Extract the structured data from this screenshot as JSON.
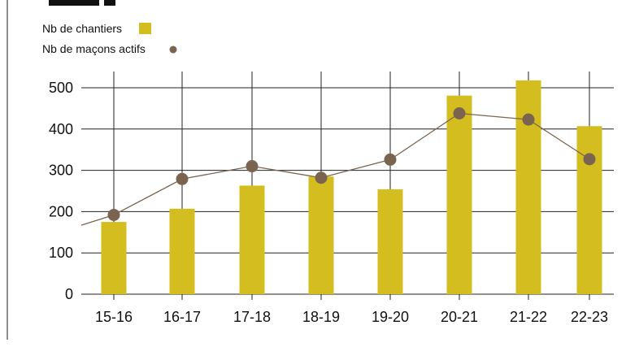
{
  "chart_data": {
    "type": "bar",
    "categories": [
      "15-16",
      "16-17",
      "17-18",
      "18-19",
      "19-20",
      "20-21",
      "21-22",
      "22-23"
    ],
    "series": [
      {
        "name": "Nb de chantiers",
        "type": "bar",
        "color": "#d4bd1e",
        "values": [
          175,
          207,
          263,
          285,
          254,
          481,
          518,
          407
        ]
      },
      {
        "name": "Nb de maçons actifs",
        "type": "line",
        "color": "#7a6450",
        "values": [
          192,
          279,
          310,
          282,
          326,
          438,
          423,
          327
        ]
      }
    ],
    "y_ticks": [
      "0",
      "100",
      "200",
      "300",
      "400",
      "500"
    ],
    "ylim": [
      0,
      500
    ],
    "grid": true,
    "legend": "top-left",
    "xlabel": "",
    "ylabel": "",
    "colors": {
      "bar": "#d4bd1e",
      "line": "#7a6450",
      "grid": "#222222",
      "text": "#111111"
    }
  }
}
